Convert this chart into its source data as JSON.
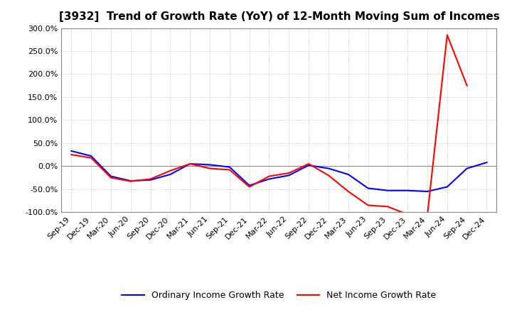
{
  "title": "[3932]  Trend of Growth Rate (YoY) of 12-Month Moving Sum of Incomes",
  "x_labels": [
    "Sep-19",
    "Dec-19",
    "Mar-20",
    "Jun-20",
    "Sep-20",
    "Dec-20",
    "Mar-21",
    "Jun-21",
    "Sep-21",
    "Dec-21",
    "Mar-22",
    "Jun-22",
    "Sep-22",
    "Dec-22",
    "Mar-23",
    "Jun-23",
    "Sep-23",
    "Dec-23",
    "Mar-24",
    "Jun-24",
    "Sep-24",
    "Dec-24"
  ],
  "ordinary_income": [
    33,
    22,
    -22,
    -32,
    -30,
    -18,
    5,
    3,
    -2,
    -42,
    -28,
    -20,
    2,
    -5,
    -18,
    -48,
    -53,
    -53,
    -55,
    -45,
    -5,
    8
  ],
  "net_income": [
    25,
    18,
    -25,
    -33,
    -28,
    -10,
    5,
    -5,
    -8,
    -45,
    -22,
    -15,
    5,
    -20,
    -55,
    -85,
    -88,
    -105,
    -106,
    285,
    175,
    null
  ],
  "ylim": [
    -100,
    300
  ],
  "yticks": [
    -100,
    -50,
    0,
    50,
    100,
    150,
    200,
    250,
    300
  ],
  "blue_color": "#0000FF",
  "red_color": "#FF0000",
  "bg_color": "#FFFFFF",
  "grid_color": "#AAAAAA",
  "legend_ordinary": "Ordinary Income Growth Rate",
  "legend_net": "Net Income Growth Rate",
  "title_fontsize": 11,
  "tick_fontsize": 8,
  "legend_fontsize": 9
}
